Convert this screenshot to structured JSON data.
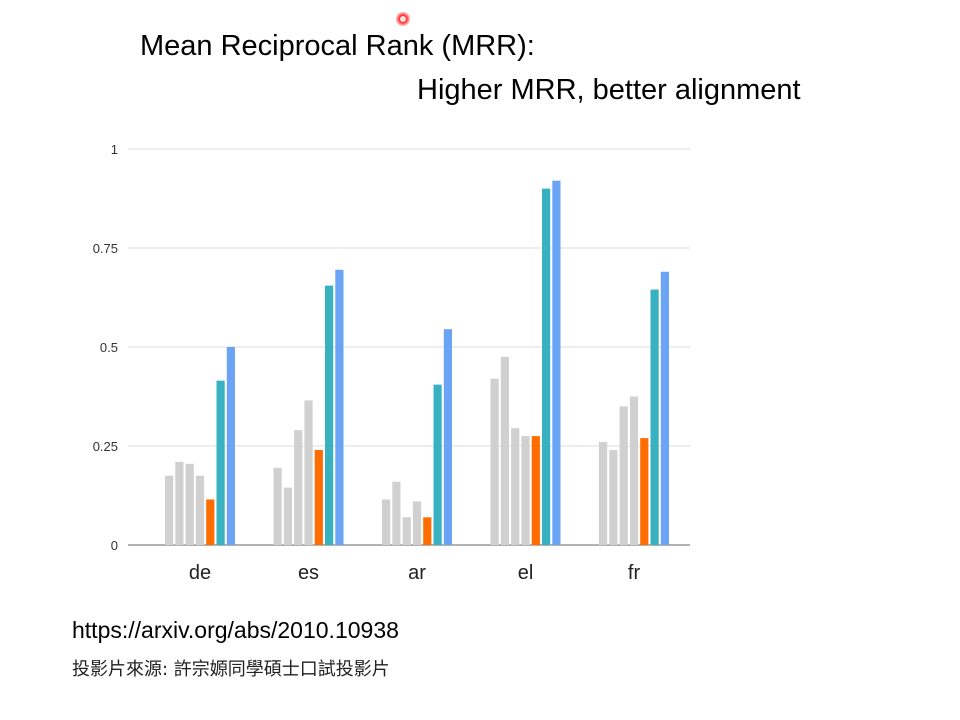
{
  "slide": {
    "title_line1": "Mean Reciprocal Rank (MRR):",
    "title_line2": "Higher MRR, better alignment",
    "source_url": "https://arxiv.org/abs/2010.10938",
    "source_note": "投影片來源: 許宗嫄同學碩士口試投影片"
  },
  "colors": {
    "gray": "#d0d0d0",
    "orange": "#ff6d00",
    "teal": "#38b2c1",
    "blue": "#6ba4f5",
    "grid": "#dcdcdc",
    "axis": "#999999"
  },
  "chart_data": {
    "type": "bar",
    "title": "",
    "xlabel": "",
    "ylabel": "",
    "ylim": [
      0,
      1
    ],
    "yticks": [
      0,
      0.25,
      0.5,
      0.75,
      1
    ],
    "ytick_labels": [
      "0",
      "0.25",
      "0.5",
      "0.75",
      "1"
    ],
    "grid": true,
    "categories": [
      "de",
      "es",
      "ar",
      "el",
      "fr"
    ],
    "series": [
      {
        "values": [
          0.175,
          0.195,
          0.115,
          0.42,
          0.26
        ],
        "color": "gray"
      },
      {
        "values": [
          0.21,
          0.145,
          0.16,
          0.475,
          0.24
        ],
        "color": "gray"
      },
      {
        "values": [
          0.205,
          0.29,
          0.07,
          0.295,
          0.35
        ],
        "color": "gray"
      },
      {
        "values": [
          0.175,
          0.365,
          0.11,
          0.275,
          0.375
        ],
        "color": "gray"
      },
      {
        "values": [
          0.115,
          0.24,
          0.07,
          0.275,
          0.27
        ],
        "color": "orange"
      },
      {
        "values": [
          0.415,
          0.655,
          0.405,
          0.9,
          0.645
        ],
        "color": "teal"
      },
      {
        "values": [
          0.5,
          0.695,
          0.545,
          0.92,
          0.69
        ],
        "color": "blue"
      }
    ]
  }
}
